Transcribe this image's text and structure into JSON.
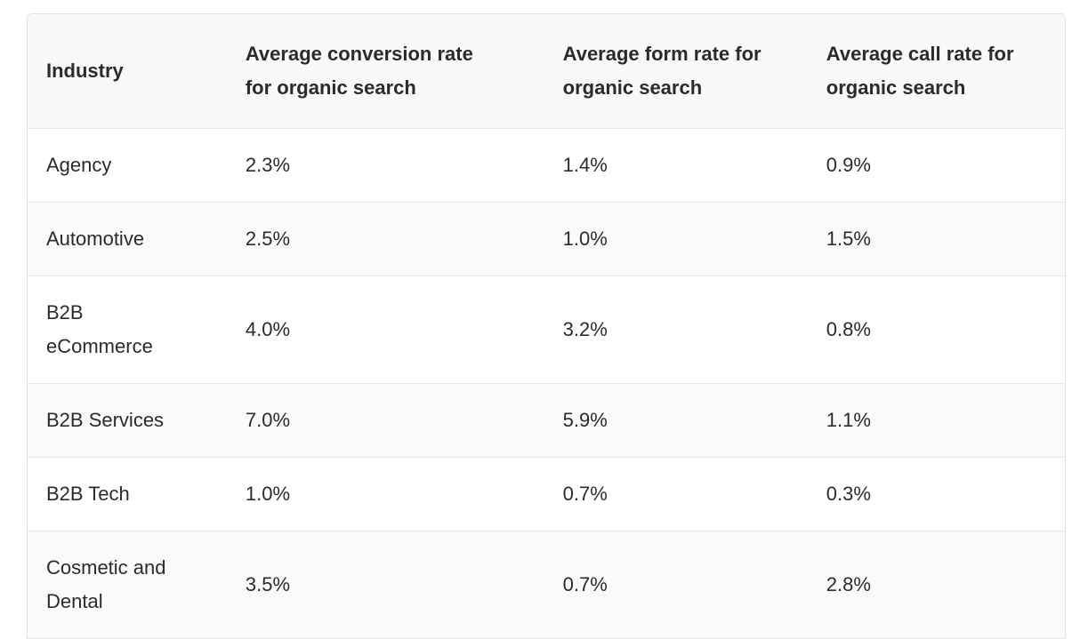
{
  "table": {
    "header": [
      "Industry",
      "Average conversion rate for organic search",
      "Average form rate for organic search",
      "Average call rate for organic search"
    ],
    "rows": [
      [
        "Agency",
        "2.3%",
        "1.4%",
        "0.9%"
      ],
      [
        "Automotive",
        "2.5%",
        "1.0%",
        "1.5%"
      ],
      [
        "B2B eCommerce",
        "4.0%",
        "3.2%",
        "0.8%"
      ],
      [
        "B2B Services",
        "7.0%",
        "5.9%",
        "1.1%"
      ],
      [
        "B2B Tech",
        "1.0%",
        "0.7%",
        "0.3%"
      ],
      [
        "Cosmetic and Dental",
        "3.5%",
        "0.7%",
        "2.8%"
      ]
    ]
  }
}
